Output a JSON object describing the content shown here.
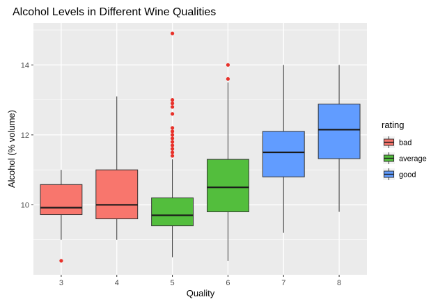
{
  "chart_data": {
    "type": "boxplot",
    "title": "Alcohol Levels in Different Wine Qualities",
    "xlabel": "Quality",
    "ylabel": "Alcohol (% volume)",
    "ylim": [
      8.0,
      15.2
    ],
    "yticks": [
      10,
      12,
      14
    ],
    "grid": true,
    "legend": {
      "title": "rating",
      "placement": "right",
      "entries": [
        {
          "label": "bad",
          "color": "#F8766D"
        },
        {
          "label": "average",
          "color": "#53BE3D"
        },
        {
          "label": "good",
          "color": "#619CFF"
        }
      ]
    },
    "boxes": [
      {
        "category": "3",
        "rating": "bad",
        "whisker_low": 9.0,
        "q1": 9.72,
        "median": 9.92,
        "q3": 10.58,
        "whisker_high": 11.0,
        "outliers": [
          8.4
        ]
      },
      {
        "category": "4",
        "rating": "bad",
        "whisker_low": 9.0,
        "q1": 9.6,
        "median": 10.0,
        "q3": 11.0,
        "whisker_high": 13.1,
        "outliers": []
      },
      {
        "category": "5",
        "rating": "average",
        "whisker_low": 8.5,
        "q1": 9.4,
        "median": 9.7,
        "q3": 10.2,
        "whisker_high": 11.3,
        "outliers": [
          11.4,
          11.5,
          11.6,
          11.7,
          11.8,
          11.9,
          12.0,
          12.1,
          12.2,
          12.6,
          12.8,
          12.9,
          13.0,
          14.9
        ]
      },
      {
        "category": "6",
        "rating": "average",
        "whisker_low": 8.4,
        "q1": 9.8,
        "median": 10.5,
        "q3": 11.3,
        "whisker_high": 13.5,
        "outliers": [
          13.6,
          14.0
        ]
      },
      {
        "category": "7",
        "rating": "good",
        "whisker_low": 9.2,
        "q1": 10.8,
        "median": 11.5,
        "q3": 12.1,
        "whisker_high": 14.0,
        "outliers": []
      },
      {
        "category": "8",
        "rating": "good",
        "whisker_low": 9.8,
        "q1": 11.32,
        "median": 12.15,
        "q3": 12.88,
        "whisker_high": 14.0,
        "outliers": []
      }
    ]
  },
  "colors": {
    "panel_background": "#EBEBEB",
    "gridline": "#FFFFFF",
    "outlier": "#E8312A"
  }
}
